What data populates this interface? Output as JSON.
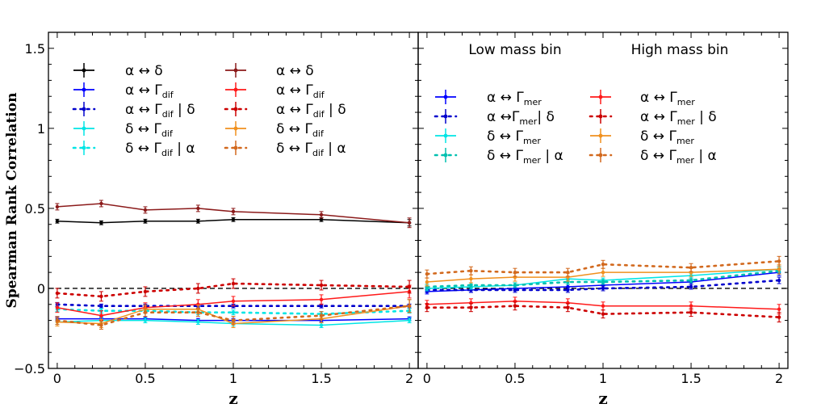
{
  "chart_data": {
    "type": "line",
    "ylabel": "Spearman Rank Correlation",
    "xlabel": "z",
    "x": [
      0,
      0.25,
      0.5,
      0.8,
      1,
      1.5,
      2
    ],
    "ylim": [
      -0.5,
      1.6
    ],
    "xlim": [
      -0.05,
      2.05
    ],
    "xticks": [
      0,
      0.5,
      1,
      1.5,
      2
    ],
    "xtick_labels": [
      "0",
      "0.5",
      "1",
      "1.5",
      "2"
    ],
    "yticks": [
      -0.5,
      0,
      0.5,
      1,
      1.5
    ],
    "ytick_labels": [
      "−0.5",
      "0",
      "0.5",
      "1",
      "1.5"
    ],
    "reference_line": 0,
    "panels": [
      {
        "name": "left",
        "legend_columns": 2,
        "series": [
          {
            "label_main": "α ↔ δ",
            "label_sub": "",
            "label_tail": "",
            "color": "#000000",
            "dashed": false,
            "values": [
              0.42,
              0.41,
              0.42,
              0.42,
              0.43,
              0.43,
              0.41
            ],
            "err": [
              0.012,
              0.012,
              0.012,
              0.012,
              0.012,
              0.012,
              0.02
            ]
          },
          {
            "label_main": "α ↔  Γ",
            "label_sub": "dif",
            "label_tail": "",
            "color": "#0000ff",
            "dashed": false,
            "values": [
              -0.19,
              -0.19,
              -0.19,
              -0.2,
              -0.2,
              -0.2,
              -0.19
            ],
            "err": [
              0.012,
              0.012,
              0.012,
              0.012,
              0.012,
              0.012,
              0.012
            ]
          },
          {
            "label_main": "α ↔  Γ",
            "label_sub": "dif",
            "label_tail": " | δ",
            "color": "#0000cc",
            "dashed": true,
            "values": [
              -0.1,
              -0.11,
              -0.11,
              -0.11,
              -0.11,
              -0.11,
              -0.11
            ],
            "err": [
              0.012,
              0.012,
              0.012,
              0.012,
              0.012,
              0.012,
              0.012
            ]
          },
          {
            "label_main": "δ ↔  Γ",
            "label_sub": "dif",
            "label_tail": "",
            "color": "#00e5e5",
            "dashed": false,
            "values": [
              -0.21,
              -0.2,
              -0.2,
              -0.21,
              -0.22,
              -0.23,
              -0.2
            ],
            "err": [
              0.015,
              0.015,
              0.015,
              0.015,
              0.015,
              0.015,
              0.015
            ]
          },
          {
            "label_main": "δ ↔  Γ",
            "label_sub": "dif",
            "label_tail": " | α",
            "color": "#00e5e5",
            "dashed": true,
            "values": [
              -0.13,
              -0.14,
              -0.14,
              -0.15,
              -0.15,
              -0.16,
              -0.14
            ],
            "err": [
              0.015,
              0.015,
              0.015,
              0.015,
              0.015,
              0.015,
              0.015
            ]
          },
          {
            "label_main": "α ↔ δ",
            "label_sub": "",
            "label_tail": "",
            "color": "#8b1a1a",
            "dashed": false,
            "values": [
              0.51,
              0.53,
              0.49,
              0.5,
              0.48,
              0.46,
              0.41
            ],
            "err": [
              0.02,
              0.02,
              0.02,
              0.02,
              0.02,
              0.02,
              0.03
            ]
          },
          {
            "label_main": "α ↔   Γ",
            "label_sub": "dif",
            "label_tail": "",
            "color": "#ff1a1a",
            "dashed": false,
            "values": [
              -0.12,
              -0.17,
              -0.12,
              -0.1,
              -0.08,
              -0.07,
              -0.02
            ],
            "err": [
              0.03,
              0.03,
              0.03,
              0.03,
              0.03,
              0.03,
              0.04
            ]
          },
          {
            "label_main": "α ↔   Γ",
            "label_sub": "dif",
            "label_tail": " | δ",
            "color": "#cc0000",
            "dashed": true,
            "values": [
              -0.03,
              -0.05,
              -0.02,
              0,
              0.03,
              0.02,
              0.01
            ],
            "err": [
              0.03,
              0.03,
              0.03,
              0.03,
              0.03,
              0.03,
              0.04
            ]
          },
          {
            "label_main": "δ ↔  Γ",
            "label_sub": "dif",
            "label_tail": "",
            "color": "#f0901e",
            "dashed": false,
            "values": [
              -0.21,
              -0.22,
              -0.13,
              -0.13,
              -0.22,
              -0.19,
              -0.11
            ],
            "err": [
              0.025,
              0.025,
              0.025,
              0.025,
              0.025,
              0.025,
              0.04
            ]
          },
          {
            "label_main": "δ ↔  Γ",
            "label_sub": "dif",
            "label_tail": " | α",
            "color": "#d2691e",
            "dashed": true,
            "values": [
              -0.2,
              -0.23,
              -0.15,
              -0.15,
              -0.2,
              -0.17,
              -0.11
            ],
            "err": [
              0.025,
              0.025,
              0.025,
              0.025,
              0.025,
              0.025,
              0.04
            ]
          }
        ]
      },
      {
        "name": "right",
        "legend_columns": 2,
        "column_titles": [
          "Low mass bin",
          "High mass bin"
        ],
        "series": [
          {
            "label_main": "α ↔  Γ",
            "label_sub": "mer",
            "label_tail": "",
            "color": "#0000ff",
            "dashed": false,
            "values": [
              -0.02,
              -0.01,
              0,
              0.01,
              0.02,
              0.04,
              0.1
            ],
            "err": [
              0.015,
              0.015,
              0.015,
              0.015,
              0.015,
              0.015,
              0.02
            ]
          },
          {
            "label_main": "α ↔Γ",
            "label_sub": "mer",
            "label_tail": "| δ",
            "color": "#0000cc",
            "dashed": true,
            "values": [
              -0.01,
              -0.01,
              -0.01,
              -0.01,
              0,
              0.01,
              0.05
            ],
            "err": [
              0.015,
              0.015,
              0.015,
              0.015,
              0.015,
              0.015,
              0.02
            ]
          },
          {
            "label_main": "δ ↔  Γ",
            "label_sub": "mer",
            "label_tail": "",
            "color": "#00e5e5",
            "dashed": false,
            "values": [
              0,
              0.01,
              0.02,
              0.06,
              0.05,
              0.08,
              0.12
            ],
            "err": [
              0.015,
              0.015,
              0.015,
              0.015,
              0.015,
              0.015,
              0.02
            ]
          },
          {
            "label_main": "δ ↔  Γ",
            "label_sub": "mer",
            "label_tail": " | α",
            "color": "#00c0b0",
            "dashed": true,
            "values": [
              0.01,
              0.02,
              0.02,
              0.04,
              0.04,
              0.05,
              0.11
            ],
            "err": [
              0.015,
              0.015,
              0.015,
              0.015,
              0.015,
              0.015,
              0.02
            ]
          },
          {
            "label_main": "α ↔  Γ",
            "label_sub": "mer",
            "label_tail": "",
            "color": "#ff1a1a",
            "dashed": false,
            "values": [
              -0.1,
              -0.09,
              -0.08,
              -0.09,
              -0.11,
              -0.11,
              -0.13
            ],
            "err": [
              0.025,
              0.025,
              0.025,
              0.025,
              0.025,
              0.025,
              0.03
            ]
          },
          {
            "label_main": "α ↔  Γ",
            "label_sub": "mer",
            "label_tail": " | δ",
            "color": "#cc0000",
            "dashed": true,
            "values": [
              -0.12,
              -0.12,
              -0.11,
              -0.12,
              -0.16,
              -0.15,
              -0.18
            ],
            "err": [
              0.025,
              0.025,
              0.025,
              0.025,
              0.025,
              0.025,
              0.03
            ]
          },
          {
            "label_main": "δ ↔  Γ",
            "label_sub": "mer",
            "label_tail": "",
            "color": "#f0901e",
            "dashed": false,
            "values": [
              0.04,
              0.06,
              0.07,
              0.07,
              0.1,
              0.1,
              0.12
            ],
            "err": [
              0.025,
              0.025,
              0.025,
              0.025,
              0.025,
              0.025,
              0.03
            ]
          },
          {
            "label_main": "δ ↔  Γ",
            "label_sub": "mer",
            "label_tail": " | α",
            "color": "#d2691e",
            "dashed": true,
            "values": [
              0.09,
              0.11,
              0.1,
              0.1,
              0.15,
              0.13,
              0.17
            ],
            "err": [
              0.025,
              0.025,
              0.025,
              0.025,
              0.025,
              0.025,
              0.03
            ]
          }
        ]
      }
    ]
  }
}
